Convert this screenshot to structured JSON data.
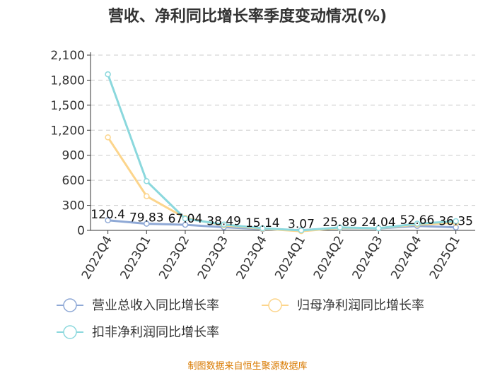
{
  "chart_data": {
    "type": "line",
    "title": "营收、净利同比增长率季度变动情况(%)",
    "xlabel": "",
    "ylabel": "",
    "categories": [
      "2022Q4",
      "2023Q1",
      "2023Q2",
      "2023Q3",
      "2023Q4",
      "2024Q1",
      "2024Q2",
      "2024Q3",
      "2024Q4",
      "2025Q1"
    ],
    "ylim": [
      0,
      2100
    ],
    "yticks": [
      0,
      300,
      600,
      900,
      1200,
      1500,
      1800,
      2100
    ],
    "ytick_labels": [
      "0",
      "300",
      "600",
      "900",
      "1,200",
      "1,500",
      "1,800",
      "2,100"
    ],
    "grid": true,
    "legend_position": "bottom",
    "series": [
      {
        "name": "营业总收入同比增长率",
        "color": "#8fa9d6",
        "values": [
          120.4,
          79.83,
          67.04,
          38.49,
          15.14,
          3.07,
          25.89,
          24.04,
          52.66,
          36.35
        ],
        "labels": [
          "120.4",
          "79.83",
          "67.04",
          "38.49",
          "15.14",
          "3.07",
          "25.89",
          "24.04",
          "52.66",
          "36.35"
        ]
      },
      {
        "name": "归母净利润同比增长率",
        "color": "#fcd58c",
        "values": [
          1115,
          410,
          150,
          60,
          20,
          -10,
          30,
          25,
          70,
          90
        ]
      },
      {
        "name": "扣非净利润同比增长率",
        "color": "#8bd8dd",
        "values": [
          1870,
          590,
          140,
          70,
          25,
          0,
          35,
          25,
          80,
          110
        ]
      }
    ]
  },
  "source_text": "制图数据来自恒生聚源数据库"
}
